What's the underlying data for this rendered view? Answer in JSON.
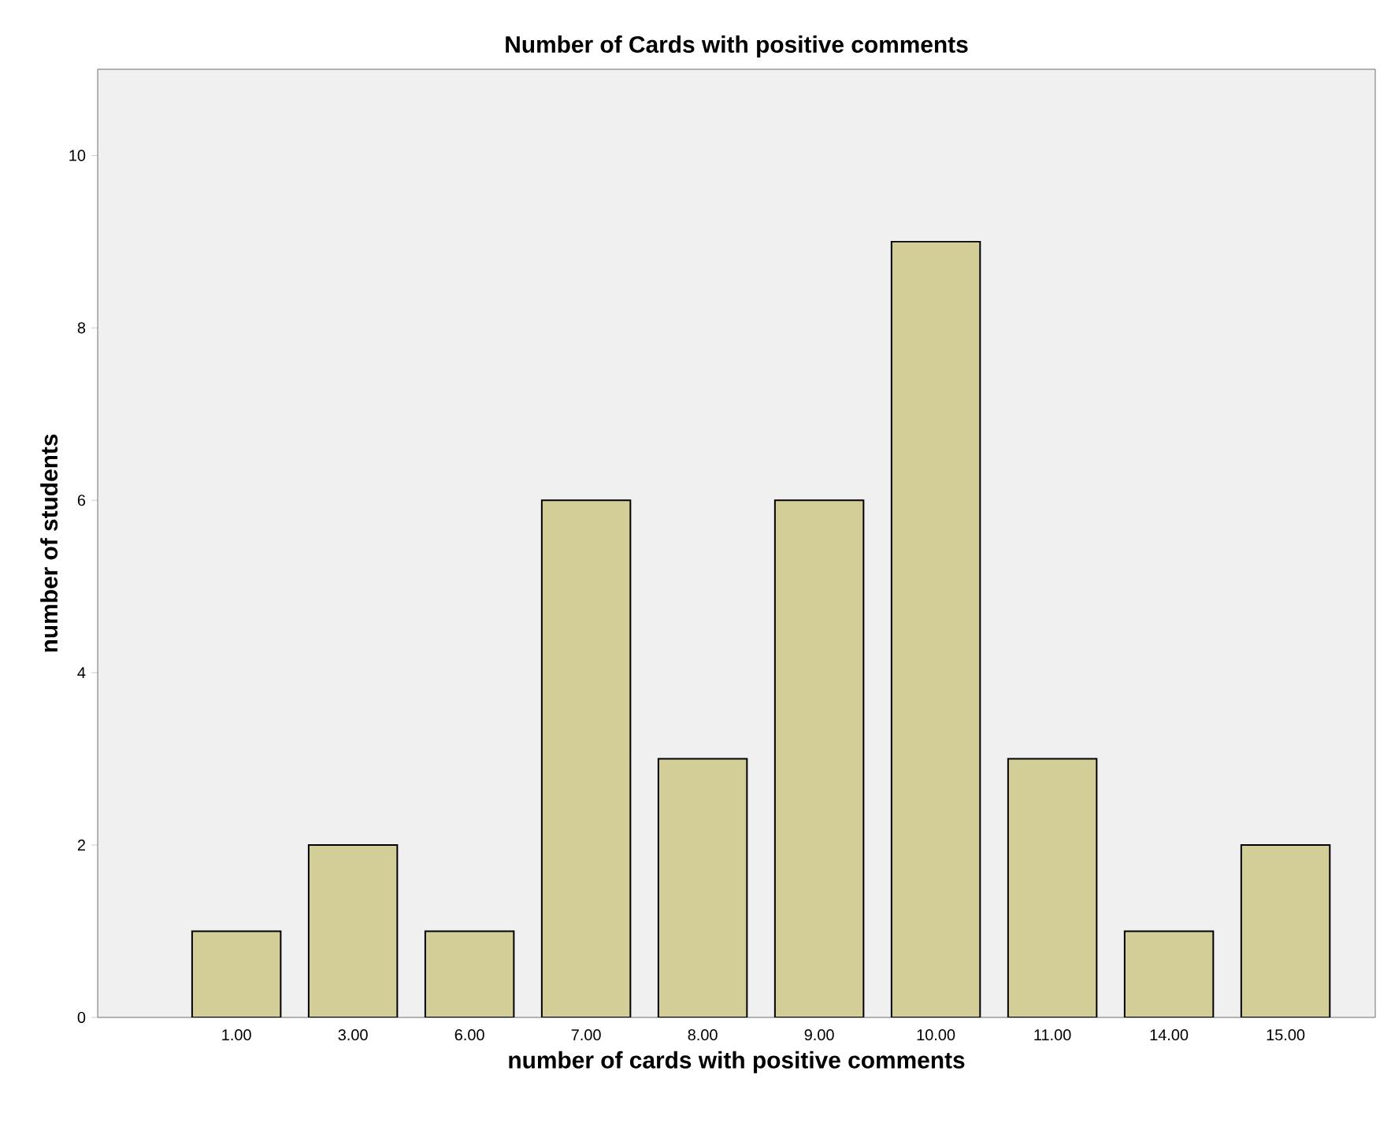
{
  "chart_data": {
    "type": "bar",
    "title": "Number of Cards with positive comments",
    "xlabel": "number of cards with positive comments",
    "ylabel": "number of students",
    "categories": [
      "1.00",
      "3.00",
      "6.00",
      "7.00",
      "8.00",
      "9.00",
      "10.00",
      "11.00",
      "14.00",
      "15.00"
    ],
    "values": [
      1,
      2,
      1,
      6,
      3,
      6,
      9,
      3,
      1,
      2
    ],
    "color": "#d3ce97",
    "ylim": [
      0,
      11
    ],
    "yticks": [
      0,
      2,
      4,
      6,
      8,
      10
    ],
    "grid": false
  }
}
